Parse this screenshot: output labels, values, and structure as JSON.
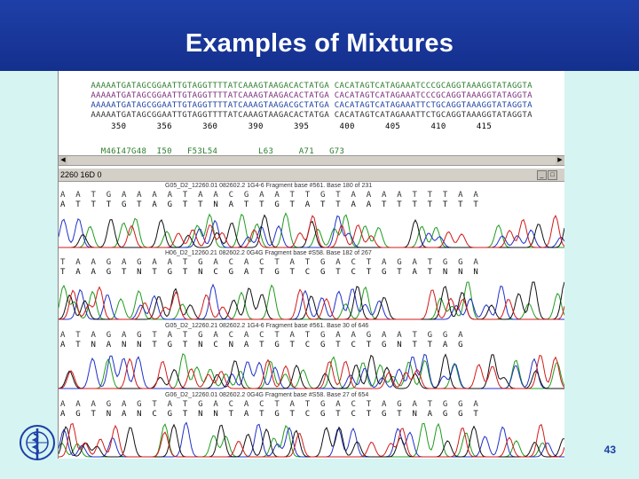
{
  "slide": {
    "title": "Examples of Mixtures",
    "page_number": "43"
  },
  "alignment": {
    "rows": [
      "AAAAATGATAGCGGAATTGTAGGTTTTATCAAAGTAAGACACTATGA CACATAGTCATAGAAATCCCGCAGGTAAAGGTATAGGTA",
      "AAAAATGATAGCGGAATTGTAGGTTTTATCAAAGTAAGACACTATGA CACATAGTCATAGAAATCCCGCAGGTAAAGGTATAGGTA",
      "AAAAATGATAGCGGAATTGTAGGTTTTATCAAAGTAAGACGCTATGA CACATAGTCATAGAAATTCTGCAGGTAAAGGTATAGGTA",
      "AAAAATGATAGCGGAATTGTAGGTTTTATCAAAGTAAGACACTATGA CACATAGTCATAGAAATTCTGCAGGTAAAGGTATAGGTA"
    ],
    "ruler": "    350      356      360      390      395      400      405      410      415",
    "annotations": "  M46I47G48  I50   F53L54        L63     A71   G73"
  },
  "panel": {
    "title": "2260 16D 0"
  },
  "traces": [
    {
      "header": "G05_D2_12260.01 082602.2 1G4-6 Fragment base #561. Base 180 of 231",
      "calls": "A A T G A A A A T A A C G A A T T G T A A A A T T T A A",
      "calls2": "A T T T G T A G T T N A T T G T A T T A A T T T T T T T"
    },
    {
      "header": "H06_D2_12260.21 082602.2 0G4G Fragment base #S58. Base 182 of 267",
      "calls": "T A A G A G A A T G A C A C T A T G A C T A G A T G G A",
      "calls2": "T A A G T N T G T N C G A T G T C G T C T G T A T N N N"
    },
    {
      "header": "G05_D2_12260.21 082602.2 1G4-6 Fragment base #561. Base 30 of 646",
      "calls": "A T A G A G T A T G A C A C T A T G A A G A A T G G A",
      "calls2": "A T N A N N T G T N C N A T G T C G T C T G N T T A G"
    },
    {
      "header": "G06_D2_12260.01 082602.2 0G4G Fragment base #S58. Base 27 of 654",
      "calls": "A A A G A G T A T G A C A C T A T G A C T A G A T G G A",
      "calls2": "A G T N A N C G T N N T A T G T C G T C T G T N A G G T"
    }
  ],
  "colors": {
    "title_bar": "#1f3fa8",
    "background": "#d6f4f1",
    "trace_a": "#1f9c1f",
    "trace_c": "#2030c8",
    "trace_g": "#111111",
    "trace_t": "#d11a1a",
    "page_number": "#1b3fa8"
  },
  "icons": {
    "logo": "who-emblem-icon",
    "scroll_left": "arrow-left-icon",
    "scroll_right": "arrow-right-icon"
  }
}
